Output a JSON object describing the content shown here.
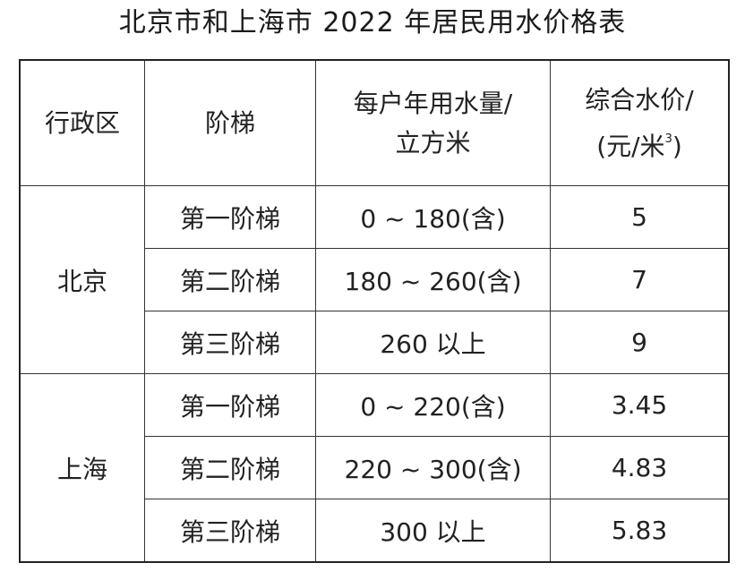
{
  "title": "北京市和上海市 2022 年居民用水价格表",
  "headers": {
    "district": "行政区",
    "tier": "阶梯",
    "volume_line1": "每户年用水量/",
    "volume_line2": "立方米",
    "price_line1": "综合水价/",
    "price_line2_pre": "(元/米",
    "price_line2_sup": "3",
    "price_line2_post": ")"
  },
  "groups": [
    {
      "district": "北京",
      "rows": [
        {
          "tier": "第一阶梯",
          "volume": "0 ~ 180(含)",
          "price": "5"
        },
        {
          "tier": "第二阶梯",
          "volume": "180 ~ 260(含)",
          "price": "7"
        },
        {
          "tier": "第三阶梯",
          "volume": "260 以上",
          "price": "9"
        }
      ]
    },
    {
      "district": "上海",
      "rows": [
        {
          "tier": "第一阶梯",
          "volume": "0 ~ 220(含)",
          "price": "3.45"
        },
        {
          "tier": "第二阶梯",
          "volume": "220 ~ 300(含)",
          "price": "4.83"
        },
        {
          "tier": "第三阶梯",
          "volume": "300 以上",
          "price": "5.83"
        }
      ]
    }
  ]
}
